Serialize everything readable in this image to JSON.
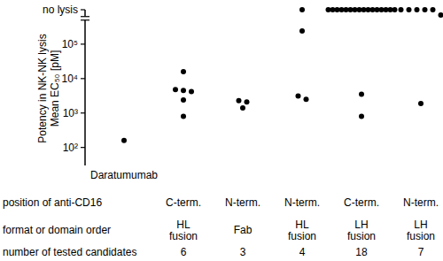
{
  "chart_data": {
    "type": "scatter",
    "log": "y",
    "color": "#000000",
    "marker": "circle",
    "y_label": [
      "Potency in NK-NK lysis",
      "Mean EC₅₀ [pM]"
    ],
    "categories": [
      "Daratumumab",
      null,
      null,
      null,
      null,
      null
    ],
    "values": [
      [
        160
      ],
      [
        16000,
        4800,
        4500,
        4200,
        2400,
        800
      ],
      [
        2300,
        1400,
        2100
      ],
      [
        1000000,
        240000,
        3100,
        2500
      ],
      [
        1000000,
        1000000,
        1000000,
        1000000,
        1000000,
        1000000,
        1000000,
        1000000,
        1000000,
        1000000,
        1000000,
        1000000,
        1000000,
        1000000,
        1000000,
        1000000,
        3500,
        800
      ],
      [
        1000000,
        1000000,
        1000000,
        1000000,
        1000000,
        700000,
        1900
      ]
    ],
    "ylim": [
      30,
      1000000
    ],
    "yticks": [
      {
        "value": 100,
        "label": "10²"
      },
      {
        "value": 1000,
        "label": "10³"
      },
      {
        "value": 10000,
        "label": "10⁴"
      },
      {
        "value": 100000,
        "label": "10⁵"
      },
      {
        "value": 1000000,
        "label": "no lysis"
      }
    ],
    "category_rows": [
      {
        "label": "position of anti-CD16",
        "values": [
          null,
          "C-term.",
          "N-term.",
          "N-term.",
          "C-term.",
          "N-term."
        ]
      },
      {
        "label": "format or domain order",
        "values": [
          null,
          "HL fusion",
          "Fab",
          "HL fusion",
          "LH fusion",
          "LH fusion"
        ]
      },
      {
        "label": "number of tested candidates",
        "values": [
          null,
          6,
          3,
          4,
          18,
          7
        ]
      }
    ]
  }
}
